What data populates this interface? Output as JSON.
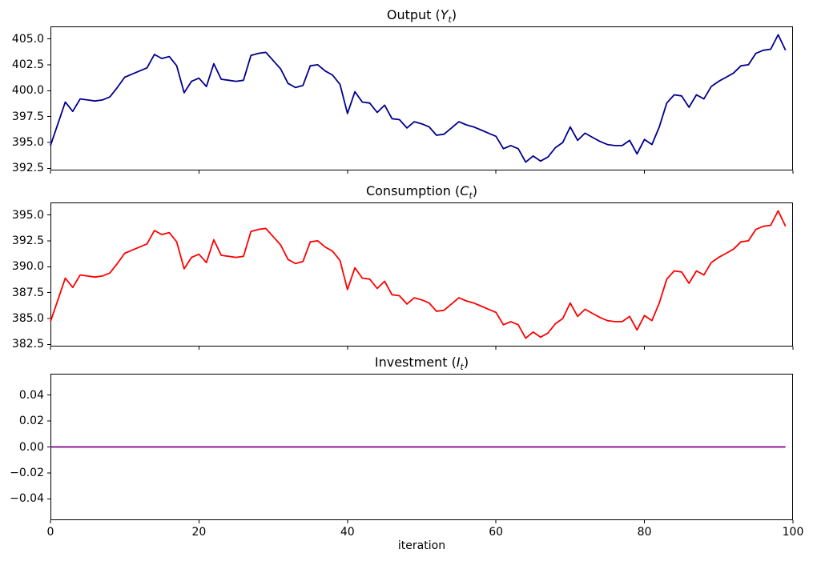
{
  "figure": {
    "background": "#ffffff",
    "description": "Three stacked matplotlib line subplots sharing the x axis"
  },
  "xaxis_label": "iteration",
  "chart_data": {
    "type": "line",
    "layout": "3 stacked subplots, shared x axis, legend off, grid off",
    "x": {
      "label": "iteration",
      "lim": [
        0,
        100
      ],
      "n_points": 100,
      "tick_values": [
        0,
        20,
        40,
        60,
        80,
        100
      ],
      "tick_labels": [
        "0",
        "20",
        "40",
        "60",
        "80",
        "100"
      ]
    },
    "subplots": [
      {
        "id": "output",
        "title": {
          "prefix": "Output (",
          "var": "Y",
          "sub": "t",
          "suffix": ")",
          "plain": "Output (Yt)"
        },
        "color": "#00008B",
        "color_name": "darkblue",
        "ylim": [
          392.3,
          406.2
        ],
        "ytick_values": [
          392.5,
          395.0,
          397.5,
          400.0,
          402.5,
          405.0
        ],
        "ytick_labels": [
          "392.5",
          "395.0",
          "397.5",
          "400.0",
          "402.5",
          "405.0"
        ],
        "values": [
          394.7,
          396.8,
          398.9,
          398.0,
          399.2,
          399.1,
          399.0,
          399.1,
          399.4,
          400.3,
          401.3,
          401.6,
          401.9,
          402.2,
          403.5,
          403.1,
          403.3,
          402.4,
          399.8,
          400.9,
          401.2,
          400.4,
          402.6,
          401.1,
          401.0,
          400.9,
          401.0,
          403.4,
          403.6,
          403.7,
          402.9,
          402.1,
          400.7,
          400.3,
          400.5,
          402.4,
          402.5,
          401.9,
          401.5,
          400.6,
          397.8,
          399.9,
          398.9,
          398.8,
          397.9,
          398.6,
          397.3,
          397.2,
          396.4,
          397.0,
          396.8,
          396.5,
          395.7,
          395.8,
          396.4,
          397.0,
          396.7,
          396.5,
          396.2,
          395.9,
          395.6,
          394.4,
          394.7,
          394.4,
          393.1,
          393.7,
          393.2,
          393.6,
          394.5,
          395.0,
          396.5,
          395.2,
          395.9,
          395.5,
          395.1,
          394.8,
          394.7,
          394.7,
          395.2,
          393.9,
          395.3,
          394.8,
          396.5,
          398.8,
          399.6,
          399.5,
          398.4,
          399.6,
          399.2,
          400.4,
          400.9,
          401.3,
          401.7,
          402.4,
          402.5,
          403.6,
          403.9,
          404.0,
          405.4,
          403.9
        ]
      },
      {
        "id": "consumption",
        "title": {
          "prefix": "Consumption (",
          "var": "C",
          "sub": "t",
          "suffix": ")",
          "plain": "Consumption (Ct)"
        },
        "color": "#FF0000",
        "color_name": "red",
        "ylim": [
          382.3,
          396.2
        ],
        "ytick_values": [
          382.5,
          385.0,
          387.5,
          390.0,
          392.5,
          395.0
        ],
        "ytick_labels": [
          "382.5",
          "385.0",
          "387.5",
          "390.0",
          "392.5",
          "395.0"
        ],
        "values": [
          384.7,
          386.8,
          388.9,
          388.0,
          389.2,
          389.1,
          389.0,
          389.1,
          389.4,
          390.3,
          391.3,
          391.6,
          391.9,
          392.2,
          393.5,
          393.1,
          393.3,
          392.4,
          389.8,
          390.9,
          391.2,
          390.4,
          392.6,
          391.1,
          391.0,
          390.9,
          391.0,
          393.4,
          393.6,
          393.7,
          392.9,
          392.1,
          390.7,
          390.3,
          390.5,
          392.4,
          392.5,
          391.9,
          391.5,
          390.6,
          387.8,
          389.9,
          388.9,
          388.8,
          387.9,
          388.6,
          387.3,
          387.2,
          386.4,
          387.0,
          386.8,
          386.5,
          385.7,
          385.8,
          386.4,
          387.0,
          386.7,
          386.5,
          386.2,
          385.9,
          385.6,
          384.4,
          384.7,
          384.4,
          383.1,
          383.7,
          383.2,
          383.6,
          384.5,
          385.0,
          386.5,
          385.2,
          385.9,
          385.5,
          385.1,
          384.8,
          384.7,
          384.7,
          385.2,
          383.9,
          385.3,
          384.8,
          386.5,
          388.8,
          389.6,
          389.5,
          388.4,
          389.6,
          389.2,
          390.4,
          390.9,
          391.3,
          391.7,
          392.4,
          392.5,
          393.6,
          393.9,
          394.0,
          395.4,
          393.9
        ]
      },
      {
        "id": "investment",
        "title": {
          "prefix": "Investment (",
          "var": "I",
          "sub": "t",
          "suffix": ")",
          "plain": "Investment (It)"
        },
        "color": "#800080",
        "color_name": "purple",
        "ylim": [
          -0.0565,
          0.0565
        ],
        "ytick_values": [
          -0.04,
          -0.02,
          0.0,
          0.02,
          0.04
        ],
        "ytick_labels": [
          "−0.04",
          "−0.02",
          "0.00",
          "0.02",
          "0.04"
        ],
        "constant_value": 0.0,
        "n_points": 100
      }
    ]
  }
}
